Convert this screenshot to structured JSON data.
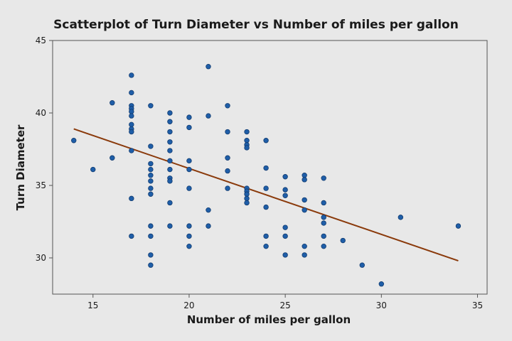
{
  "chart_data": {
    "type": "scatter",
    "title": "Scatterplot of Turn Diameter vs Number of miles per gallon",
    "xlabel": "Number of miles per gallon",
    "ylabel": "Turn Diameter",
    "xlim": [
      12.9,
      35.5
    ],
    "ylim": [
      27.5,
      45
    ],
    "xticks": [
      15,
      20,
      25,
      30,
      35
    ],
    "yticks": [
      30,
      35,
      40,
      45
    ],
    "grid": false,
    "legend": "none",
    "colors": {
      "background": "#e8e8e8",
      "marker": "#1f5ea8",
      "marker_edge": "#123c70",
      "fit_line": "#8a3a0b",
      "axis": "#555555"
    },
    "fit_line": {
      "x": [
        14,
        34
      ],
      "y": [
        38.9,
        29.8
      ]
    },
    "points": [
      [
        14,
        38.1
      ],
      [
        15,
        36.1
      ],
      [
        16,
        40.7
      ],
      [
        16,
        36.9
      ],
      [
        17,
        42.6
      ],
      [
        17,
        41.4
      ],
      [
        17,
        40.5
      ],
      [
        17,
        40.3
      ],
      [
        17,
        40.1
      ],
      [
        17,
        39.8
      ],
      [
        17,
        39.2
      ],
      [
        17,
        38.9
      ],
      [
        17,
        38.7
      ],
      [
        17,
        37.4
      ],
      [
        17,
        34.1
      ],
      [
        17,
        31.5
      ],
      [
        18,
        40.5
      ],
      [
        18,
        37.7
      ],
      [
        18,
        36.5
      ],
      [
        18,
        36.1
      ],
      [
        18,
        35.7
      ],
      [
        18,
        35.3
      ],
      [
        18,
        34.8
      ],
      [
        18,
        34.4
      ],
      [
        18,
        32.2
      ],
      [
        18,
        31.5
      ],
      [
        18,
        30.2
      ],
      [
        18,
        29.5
      ],
      [
        19,
        40.0
      ],
      [
        19,
        39.4
      ],
      [
        19,
        38.7
      ],
      [
        19,
        38.0
      ],
      [
        19,
        37.4
      ],
      [
        19,
        36.7
      ],
      [
        19,
        36.1
      ],
      [
        19,
        35.5
      ],
      [
        19,
        35.3
      ],
      [
        19,
        33.8
      ],
      [
        19,
        32.2
      ],
      [
        20,
        39.7
      ],
      [
        20,
        39.0
      ],
      [
        20,
        36.7
      ],
      [
        20,
        36.1
      ],
      [
        20,
        34.8
      ],
      [
        20,
        32.2
      ],
      [
        20,
        31.5
      ],
      [
        20,
        30.8
      ],
      [
        21,
        43.2
      ],
      [
        21,
        39.8
      ],
      [
        21,
        33.3
      ],
      [
        21,
        32.2
      ],
      [
        22,
        40.5
      ],
      [
        22,
        38.7
      ],
      [
        22,
        36.9
      ],
      [
        22,
        36.0
      ],
      [
        22,
        34.8
      ],
      [
        23,
        38.7
      ],
      [
        23,
        38.1
      ],
      [
        23,
        37.8
      ],
      [
        23,
        37.6
      ],
      [
        23,
        34.8
      ],
      [
        23,
        34.6
      ],
      [
        23,
        34.4
      ],
      [
        23,
        34.1
      ],
      [
        23,
        33.8
      ],
      [
        24,
        38.1
      ],
      [
        24,
        36.2
      ],
      [
        24,
        34.8
      ],
      [
        24,
        33.5
      ],
      [
        24,
        31.5
      ],
      [
        24,
        30.8
      ],
      [
        25,
        35.6
      ],
      [
        25,
        34.7
      ],
      [
        25,
        34.3
      ],
      [
        25,
        32.1
      ],
      [
        25,
        31.5
      ],
      [
        25,
        30.2
      ],
      [
        26,
        35.7
      ],
      [
        26,
        35.4
      ],
      [
        26,
        34.0
      ],
      [
        26,
        33.3
      ],
      [
        26,
        30.8
      ],
      [
        26,
        30.2
      ],
      [
        27,
        35.5
      ],
      [
        27,
        33.8
      ],
      [
        27,
        32.8
      ],
      [
        27,
        32.4
      ],
      [
        27,
        31.5
      ],
      [
        27,
        30.8
      ],
      [
        28,
        31.2
      ],
      [
        29,
        29.5
      ],
      [
        30,
        28.2
      ],
      [
        31,
        32.8
      ],
      [
        34,
        32.2
      ]
    ]
  }
}
